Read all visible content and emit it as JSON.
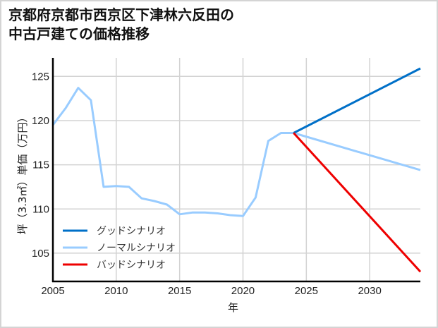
{
  "title_line1": "京都府京都市西京区下津林六反田の",
  "title_line2": "中古戸建ての価格推移",
  "chart_data": {
    "type": "line",
    "title": "京都府京都市西京区下津林六反田の中古戸建ての価格推移",
    "xlabel": "年",
    "ylabel": "坪（3.3㎡）単価（万円）",
    "xlim": [
      2005,
      2034
    ],
    "ylim": [
      101.8,
      127.1
    ],
    "xticks": [
      2005,
      2010,
      2015,
      2020,
      2025,
      2030
    ],
    "yticks": [
      105,
      110,
      115,
      120,
      125
    ],
    "grid": true,
    "legend_position": "lower left",
    "series": [
      {
        "name": "グッドシナリオ",
        "color": "#0070c8",
        "x": [
          2024,
          2034
        ],
        "values": [
          118.6,
          125.9
        ]
      },
      {
        "name": "ノーマルシナリオ",
        "color": "#99ccff",
        "x": [
          2005,
          2006,
          2007,
          2008,
          2009,
          2010,
          2011,
          2012,
          2013,
          2014,
          2015,
          2016,
          2017,
          2018,
          2019,
          2020,
          2021,
          2022,
          2023,
          2024,
          2034
        ],
        "values": [
          119.5,
          121.4,
          123.7,
          122.3,
          112.5,
          112.6,
          112.5,
          111.2,
          110.9,
          110.5,
          109.4,
          109.6,
          109.6,
          109.5,
          109.3,
          109.2,
          111.3,
          117.7,
          118.6,
          118.6,
          114.4
        ]
      },
      {
        "name": "バッドシナリオ",
        "color": "#ee0000",
        "x": [
          2024,
          2034
        ],
        "values": [
          118.6,
          102.9
        ]
      }
    ]
  }
}
